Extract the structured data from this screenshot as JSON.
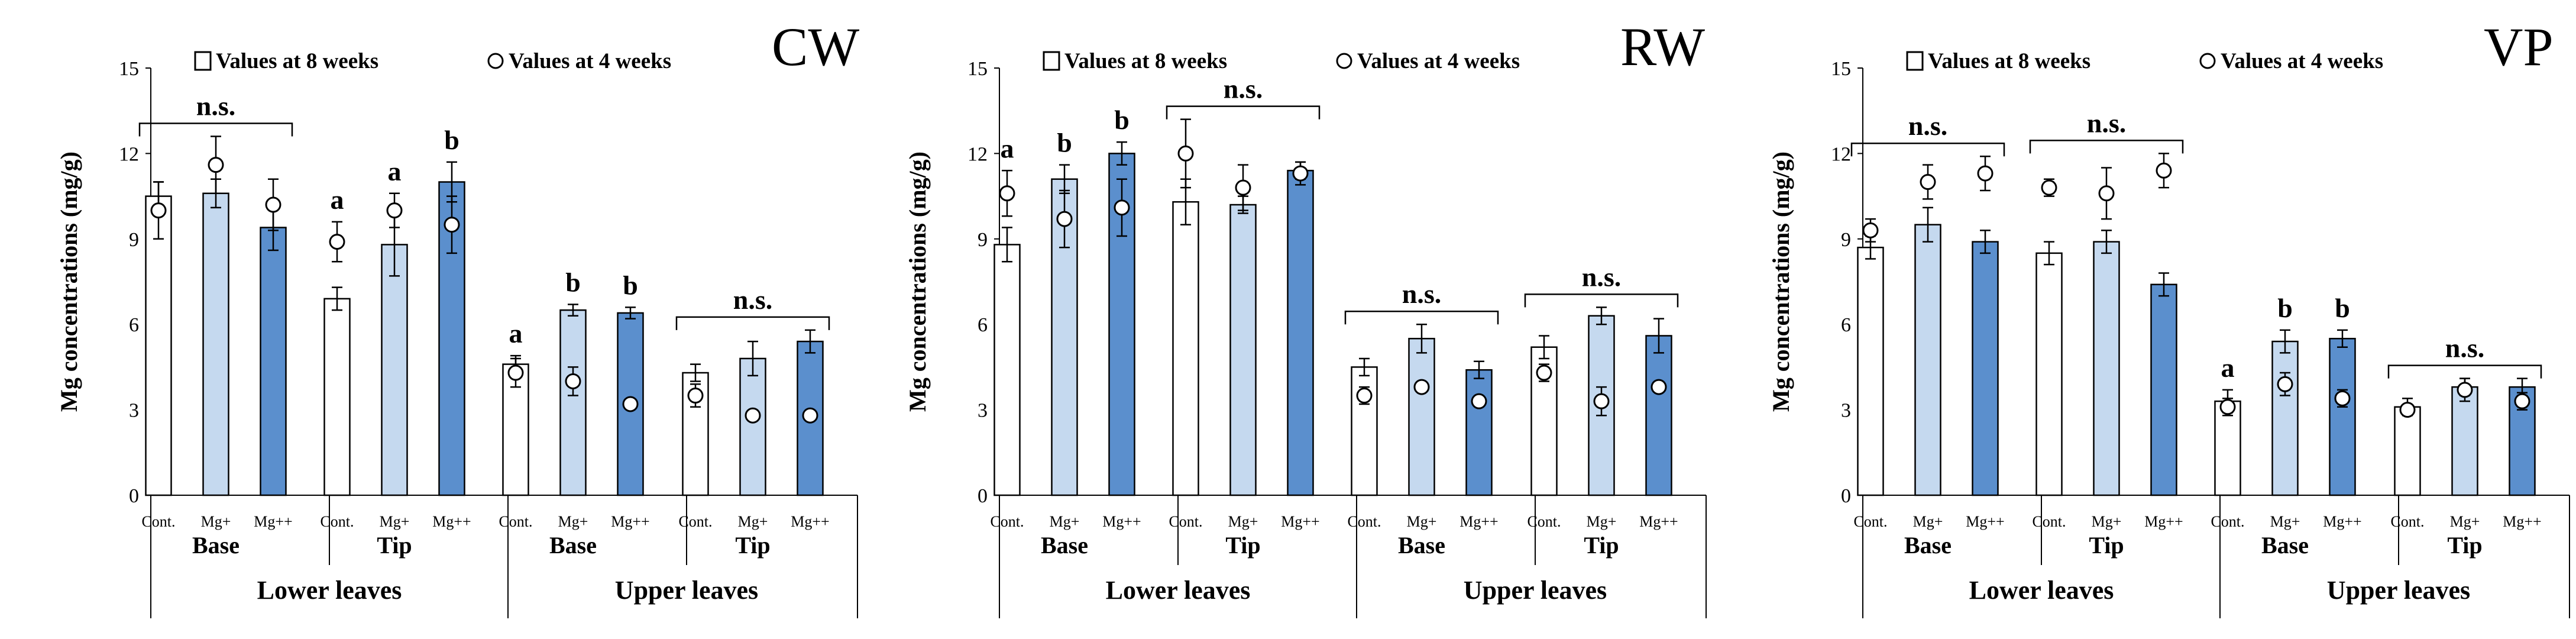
{
  "legend": {
    "bar_label": "Values at 8 weeks",
    "circle_label": "Values at 4 weeks"
  },
  "colors": {
    "cont": "#ffffff",
    "mg_plus": "#c5d9ef",
    "mg_plusplus": "#5b8fcd",
    "stroke": "#000000"
  },
  "chart_data": [
    {
      "type": "bar",
      "title": "CW",
      "ylabel": "Mg concentrations (mg/g)",
      "ylim": [
        0,
        15
      ],
      "yticks": [
        "0",
        "3",
        "6",
        "9",
        "12",
        "15"
      ],
      "treatments": [
        "Cont.",
        "Mg+",
        "Mg++"
      ],
      "groups": [
        {
          "part": "Base",
          "leaf": "Lower leaves",
          "values_8w": [
            10.5,
            10.6,
            9.4
          ],
          "err_8w": [
            0.5,
            0.5,
            0.8
          ],
          "values_4w": [
            10.0,
            11.6,
            10.2
          ],
          "err_4w": [
            1.0,
            1.0,
            0.9
          ],
          "letters": [
            "",
            "",
            ""
          ],
          "ns_label": "n.s."
        },
        {
          "part": "Tip",
          "leaf": "Lower leaves",
          "values_8w": [
            6.9,
            8.8,
            11.0
          ],
          "err_8w": [
            0.4,
            1.1,
            0.7
          ],
          "values_4w": [
            8.9,
            10.0,
            9.5
          ],
          "err_4w": [
            0.7,
            0.6,
            1.0
          ],
          "letters": [
            "a",
            "a",
            "b"
          ],
          "ns_label": ""
        },
        {
          "part": "Base",
          "leaf": "Upper leaves",
          "values_8w": [
            4.6,
            6.5,
            6.4
          ],
          "err_8w": [
            0.3,
            0.2,
            0.2
          ],
          "values_4w": [
            4.3,
            4.0,
            3.2
          ],
          "err_4w": [
            0.5,
            0.5,
            0.0
          ],
          "letters": [
            "a",
            "b",
            "b"
          ],
          "ns_label": ""
        },
        {
          "part": "Tip",
          "leaf": "Upper leaves",
          "values_8w": [
            4.3,
            4.8,
            5.4
          ],
          "err_8w": [
            0.3,
            0.6,
            0.4
          ],
          "values_4w": [
            3.5,
            2.8,
            2.8
          ],
          "err_4w": [
            0.4,
            0.0,
            0.0
          ],
          "letters": [
            "",
            "",
            ""
          ],
          "ns_label": "n.s."
        }
      ]
    },
    {
      "type": "bar",
      "title": "RW",
      "ylabel": "Mg concentrations (mg/g)",
      "ylim": [
        0,
        15
      ],
      "yticks": [
        "0",
        "3",
        "6",
        "9",
        "12",
        "15"
      ],
      "treatments": [
        "Cont.",
        "Mg+",
        "Mg++"
      ],
      "groups": [
        {
          "part": "Base",
          "leaf": "Lower leaves",
          "values_8w": [
            8.8,
            11.1,
            12.0
          ],
          "err_8w": [
            0.6,
            0.5,
            0.4
          ],
          "values_4w": [
            10.6,
            9.7,
            10.1
          ],
          "err_4w": [
            0.8,
            1.0,
            1.0
          ],
          "letters": [
            "a",
            "b",
            "b"
          ],
          "ns_label": ""
        },
        {
          "part": "Tip",
          "leaf": "Lower leaves",
          "values_8w": [
            10.3,
            10.2,
            11.4
          ],
          "err_8w": [
            0.8,
            0.3,
            0.3
          ],
          "values_4w": [
            12.0,
            10.8,
            11.3
          ],
          "err_4w": [
            1.2,
            0.8,
            0.4
          ],
          "letters": [
            "",
            "",
            ""
          ],
          "ns_label": "n.s."
        },
        {
          "part": "Base",
          "leaf": "Upper leaves",
          "values_8w": [
            4.5,
            5.5,
            4.4
          ],
          "err_8w": [
            0.3,
            0.5,
            0.3
          ],
          "values_4w": [
            3.5,
            3.8,
            3.3
          ],
          "err_4w": [
            0.3,
            0.0,
            0.0
          ],
          "letters": [
            "",
            "",
            ""
          ],
          "ns_label": "n.s."
        },
        {
          "part": "Tip",
          "leaf": "Upper leaves",
          "values_8w": [
            5.2,
            6.3,
            5.6
          ],
          "err_8w": [
            0.4,
            0.3,
            0.6
          ],
          "values_4w": [
            4.3,
            3.3,
            3.8
          ],
          "err_4w": [
            0.3,
            0.5,
            0.0
          ],
          "letters": [
            "",
            "",
            ""
          ],
          "ns_label": "n.s."
        }
      ]
    },
    {
      "type": "bar",
      "title": "VP",
      "ylabel": "Mg concentrations (mg/g)",
      "ylim": [
        0,
        15
      ],
      "yticks": [
        "0",
        "3",
        "6",
        "9",
        "12",
        "15"
      ],
      "treatments": [
        "Cont.",
        "Mg+",
        "Mg++"
      ],
      "groups": [
        {
          "part": "Base",
          "leaf": "Lower leaves",
          "values_8w": [
            8.7,
            9.5,
            8.9
          ],
          "err_8w": [
            0.4,
            0.6,
            0.4
          ],
          "values_4w": [
            9.3,
            11.0,
            11.3
          ],
          "err_4w": [
            0.4,
            0.6,
            0.6
          ],
          "letters": [
            "",
            "",
            ""
          ],
          "ns_label": "n.s."
        },
        {
          "part": "Tip",
          "leaf": "Lower leaves",
          "values_8w": [
            8.5,
            8.9,
            7.4
          ],
          "err_8w": [
            0.4,
            0.4,
            0.4
          ],
          "values_4w": [
            10.8,
            10.6,
            11.4
          ],
          "err_4w": [
            0.3,
            0.9,
            0.6
          ],
          "letters": [
            "",
            "",
            ""
          ],
          "ns_label": "n.s."
        },
        {
          "part": "Base",
          "leaf": "Upper leaves",
          "values_8w": [
            3.3,
            5.4,
            5.5
          ],
          "err_8w": [
            0.4,
            0.4,
            0.3
          ],
          "values_4w": [
            3.1,
            3.9,
            3.4
          ],
          "err_4w": [
            0.3,
            0.4,
            0.3
          ],
          "letters": [
            "a",
            "b",
            "b"
          ],
          "ns_label": ""
        },
        {
          "part": "Tip",
          "leaf": "Upper leaves",
          "values_8w": [
            3.1,
            3.8,
            3.8
          ],
          "err_8w": [
            0.3,
            0.3,
            0.3
          ],
          "values_4w": [
            3.0,
            3.7,
            3.3
          ],
          "err_4w": [
            0.0,
            0.4,
            0.3
          ],
          "letters": [
            "",
            "",
            ""
          ],
          "ns_label": "n.s."
        }
      ]
    }
  ]
}
